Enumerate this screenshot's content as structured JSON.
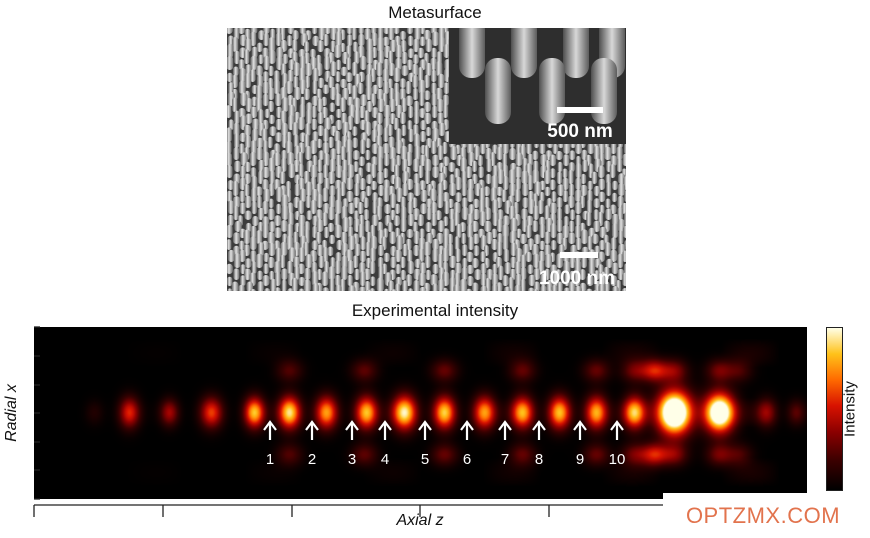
{
  "figure": {
    "top_title": "Metasurface",
    "bottom_title": "Experimental intensity",
    "scalebar_inset": "500 nm",
    "scalebar_main": "1000 nm",
    "y_axis_label": "Radial x",
    "x_axis_label": "Axial z",
    "colorbar_label": "Intensity",
    "foci_labels": [
      "1",
      "2",
      "3",
      "4",
      "5",
      "6",
      "7",
      "8",
      "9",
      "10"
    ],
    "watermark": "OPTZMX.COM"
  },
  "colors": {
    "heat_low": "#000000",
    "heat_mid": "#d81200",
    "heat_high": "#ffffe8",
    "arrow": "#ffffff",
    "watermark": "#e2734d"
  }
}
